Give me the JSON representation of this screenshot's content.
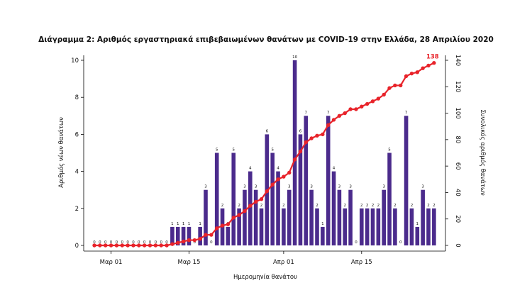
{
  "chart_data": {
    "type": "bar+line",
    "title": "Διάγραμμα 2: Αριθμός εργαστηριακά επιβεβαιωμένων θανάτων με COVID-19 στην Ελλάδα, 28 Απριλίου 2020",
    "xlabel": "Ημερομηνία θανάτου",
    "ylabel_left": "Αριθμός νέων θανάτων",
    "ylabel_right": "Συνολικός αριθμός θανάτων",
    "ylim_left": [
      0,
      10
    ],
    "ylim_right": [
      0,
      140
    ],
    "yticks_left": [
      0,
      2,
      4,
      6,
      8,
      10
    ],
    "yticks_right": [
      0,
      20,
      40,
      60,
      80,
      100,
      120,
      140
    ],
    "x_ticks": [
      {
        "day_index": 3,
        "label": "Μαρ 01"
      },
      {
        "day_index": 17,
        "label": "Μαρ 15"
      },
      {
        "day_index": 34,
        "label": "Απρ 01"
      },
      {
        "day_index": 48,
        "label": "Απρ 15"
      }
    ],
    "grid": false,
    "series": [
      {
        "type": "bar",
        "axis": "left",
        "color": "#4b2b8c",
        "values": [
          0,
          0,
          0,
          0,
          0,
          0,
          0,
          0,
          0,
          0,
          0,
          0,
          0,
          0,
          1,
          1,
          1,
          1,
          0,
          1,
          3,
          0,
          5,
          2,
          1,
          5,
          2,
          3,
          4,
          3,
          2,
          6,
          5,
          4,
          2,
          3,
          10,
          6,
          7,
          3,
          2,
          1,
          7,
          4,
          3,
          2,
          3,
          0,
          2,
          2,
          2,
          2,
          3,
          5,
          2,
          0,
          7,
          2,
          1,
          3,
          2,
          2
        ],
        "show_values": true
      },
      {
        "type": "line",
        "axis": "right",
        "color": "#e8232a",
        "values": [
          0,
          0,
          0,
          0,
          0,
          0,
          0,
          0,
          0,
          0,
          0,
          0,
          0,
          0,
          1,
          2,
          3,
          4,
          4,
          5,
          8,
          8,
          13,
          15,
          16,
          21,
          23,
          26,
          30,
          33,
          35,
          41,
          46,
          50,
          52,
          55,
          65,
          71,
          78,
          81,
          83,
          84,
          91,
          95,
          98,
          100,
          103,
          103,
          105,
          107,
          109,
          111,
          114,
          119,
          121,
          121,
          128,
          130,
          131,
          134,
          136,
          138
        ],
        "end_label": "138"
      }
    ]
  }
}
